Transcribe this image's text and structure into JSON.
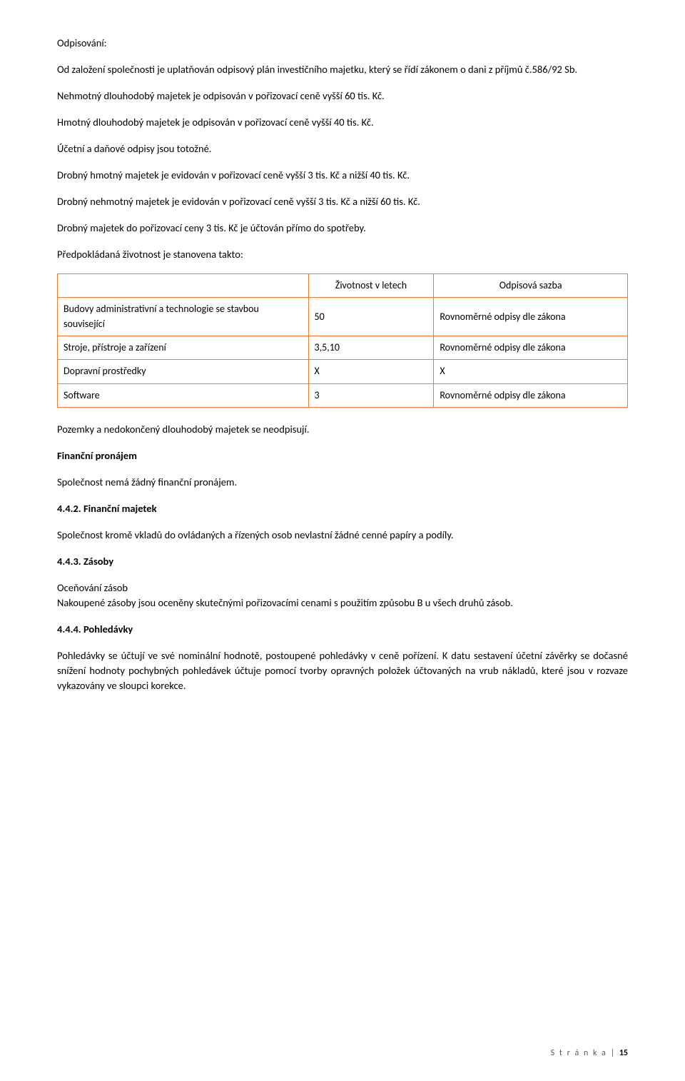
{
  "p1": "Odpisování:",
  "p2": "Od založení společnosti je uplatňován odpisový plán investičního majetku, který se řídí zákonem o dani z příjmů č.586/92 Sb.",
  "p3": "Nehmotný dlouhodobý majetek je odpisován v pořizovací ceně vyšší 60 tis. Kč.",
  "p4": "Hmotný dlouhodobý majetek je odpisován v pořizovací ceně vyšší 40 tis. Kč.",
  "p5": "Účetní a daňové odpisy jsou totožné.",
  "p6": "Drobný hmotný majetek je evidován v pořizovací ceně vyšší 3 tis. Kč a nižší 40 tis. Kč.",
  "p7": "Drobný nehmotný majetek je evidován v pořizovací ceně vyšší 3 tis. Kč a nižší 60 tis. Kč.",
  "p8": "Drobný majetek do pořizovací ceny 3 tis. Kč je účtován přímo do spotřeby.",
  "p9": "Předpokládaná životnost je stanovena takto:",
  "table": {
    "header": {
      "c2": "Životnost v letech",
      "c3": "Odpisová sazba"
    },
    "rows": [
      {
        "c1": "Budovy administrativní a technologie se stavbou související",
        "c2": "50",
        "c3": "Rovnoměrné odpisy dle zákona"
      },
      {
        "c1": "Stroje, přístroje a zařízení",
        "c2": "3,5,10",
        "c3": "Rovnoměrné odpisy dle zákona"
      },
      {
        "c1": "Dopravní prostředky",
        "c2": "X",
        "c3": "X"
      },
      {
        "c1": "Software",
        "c2": "3",
        "c3": "Rovnoměrné odpisy dle zákona"
      }
    ]
  },
  "p10": "Pozemky a nedokončený dlouhodobý majetek se neodpisují.",
  "h1": "Finanční pronájem",
  "p11": "Společnost nemá žádný finanční pronájem.",
  "h2": "4.4.2. Finanční majetek",
  "p12": "Společnost kromě vkladů do ovládaných a řízených osob nevlastní žádné cenné papíry a podíly.",
  "h3": "4.4.3.  Zásoby",
  "p13": "Oceňování zásob",
  "p14": "Nakoupené zásoby jsou oceněny skutečnými pořizovacími cenami s použitím způsobu B u všech druhů zásob.",
  "h4": "4.4.4.  Pohledávky",
  "p15": "Pohledávky se účtují ve své nominální hodnotě, postoupené pohledávky v ceně pořízení. K datu sestavení účetní závěrky se dočasné snížení hodnoty pochybných pohledávek účtuje pomocí tvorby opravných položek účtovaných na vrub nákladů, které jsou v rozvaze vykazovány ve sloupci korekce.",
  "footer": {
    "label": "S t r á n k a",
    "sep": " | ",
    "num": "15"
  }
}
